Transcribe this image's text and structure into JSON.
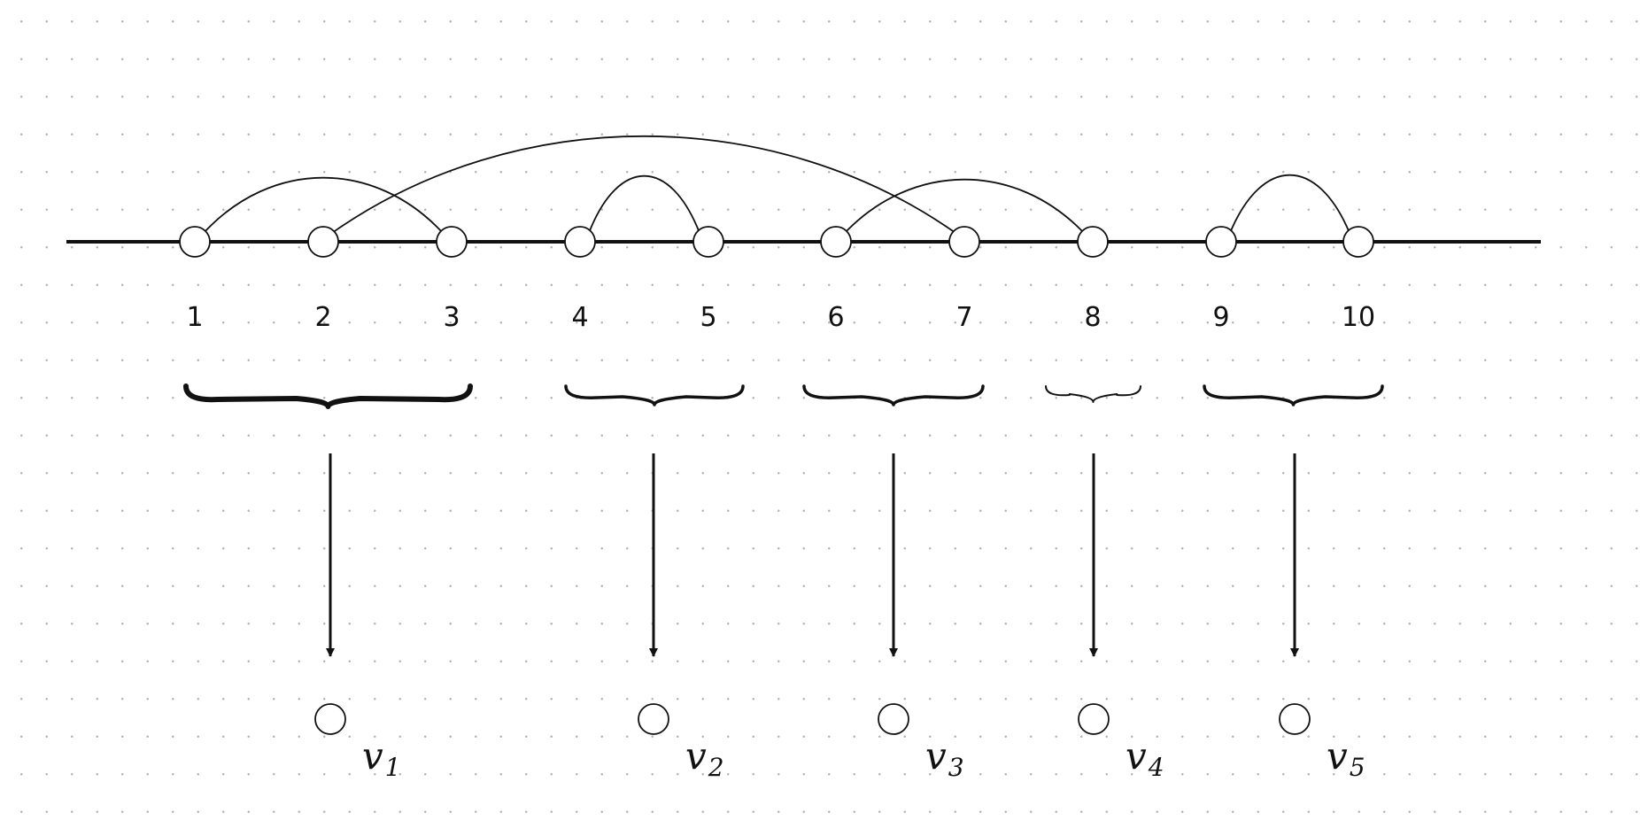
{
  "nodes": [
    {
      "id": 1,
      "label": "1"
    },
    {
      "id": 2,
      "label": "2"
    },
    {
      "id": 3,
      "label": "3"
    },
    {
      "id": 4,
      "label": "4"
    },
    {
      "id": 5,
      "label": "5"
    },
    {
      "id": 6,
      "label": "6"
    },
    {
      "id": 7,
      "label": "7"
    },
    {
      "id": 8,
      "label": "8"
    },
    {
      "id": 9,
      "label": "9"
    },
    {
      "id": 10,
      "label": "10"
    }
  ],
  "arcs": [
    {
      "from": 1,
      "to": 3
    },
    {
      "from": 2,
      "to": 7
    },
    {
      "from": 4,
      "to": 5
    },
    {
      "from": 6,
      "to": 8
    },
    {
      "from": 9,
      "to": 10
    }
  ],
  "groups": [
    {
      "members": [
        1,
        2,
        3
      ],
      "vertex": "v",
      "subscript": "1"
    },
    {
      "members": [
        4,
        5
      ],
      "vertex": "v",
      "subscript": "2"
    },
    {
      "members": [
        6,
        7
      ],
      "vertex": "v",
      "subscript": "3"
    },
    {
      "members": [
        8
      ],
      "vertex": "v",
      "subscript": "4"
    },
    {
      "members": [
        9,
        10
      ],
      "vertex": "v",
      "subscript": "5"
    }
  ]
}
